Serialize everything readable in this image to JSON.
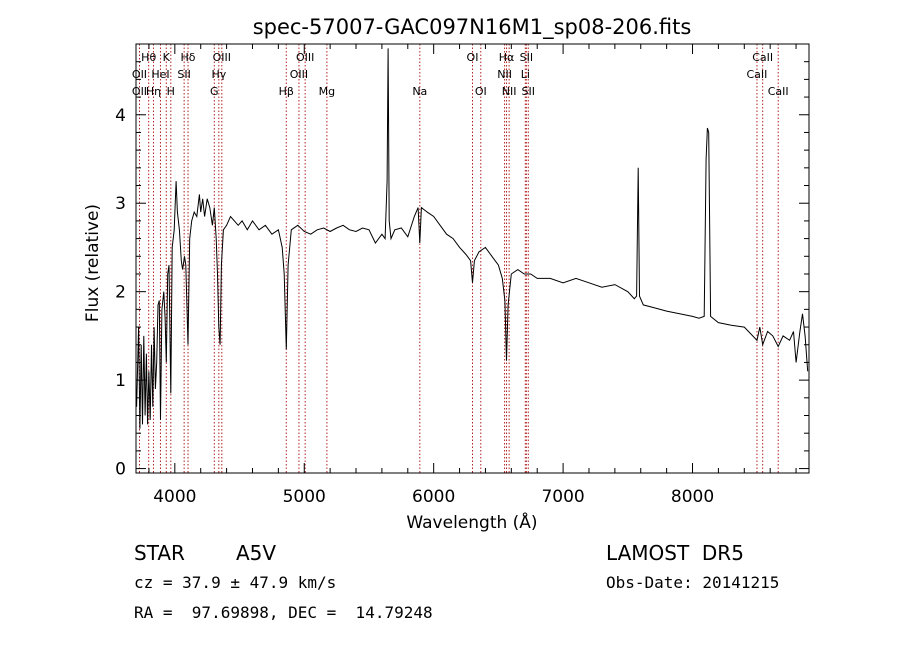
{
  "chart_data": {
    "type": "line",
    "title": "spec-57007-GAC097N16M1_sp08-206.fits",
    "xlabel": "Wavelength (Å)",
    "ylabel": "Flux (relative)",
    "xlim": [
      3700,
      8900
    ],
    "ylim": [
      -0.05,
      4.8
    ],
    "x_ticks": [
      4000,
      5000,
      6000,
      7000,
      8000
    ],
    "y_ticks": [
      0,
      1,
      2,
      3,
      4
    ],
    "grid": false,
    "line_color": "#000000",
    "marker_color": "#b22222",
    "spectral_lines": [
      {
        "label": "Hθ",
        "wavelength": 3798,
        "row": 0
      },
      {
        "label": "K",
        "wavelength": 3934,
        "row": 0
      },
      {
        "label": "Hδ",
        "wavelength": 4102,
        "row": 0
      },
      {
        "label": "OIII",
        "wavelength": 4363,
        "row": 0
      },
      {
        "label": "OIII",
        "wavelength": 5007,
        "row": 0
      },
      {
        "label": "OI",
        "wavelength": 6300,
        "row": 0
      },
      {
        "label": "Hα",
        "wavelength": 6563,
        "row": 0
      },
      {
        "label": "SII",
        "wavelength": 6716,
        "row": 0
      },
      {
        "label": "CaII",
        "wavelength": 8542,
        "row": 0
      },
      {
        "label": "OII",
        "wavelength": 3727,
        "row": 1
      },
      {
        "label": "HeI",
        "wavelength": 3889,
        "row": 1
      },
      {
        "label": "SII",
        "wavelength": 4072,
        "row": 1
      },
      {
        "label": "Hγ",
        "wavelength": 4340,
        "row": 1
      },
      {
        "label": "OIII",
        "wavelength": 4959,
        "row": 1
      },
      {
        "label": "NII",
        "wavelength": 6548,
        "row": 1
      },
      {
        "label": "Li",
        "wavelength": 6708,
        "row": 1
      },
      {
        "label": "CaII",
        "wavelength": 8498,
        "row": 1
      },
      {
        "label": "OII",
        "wavelength": 3727,
        "row": 2
      },
      {
        "label": "Hη",
        "wavelength": 3835,
        "row": 2
      },
      {
        "label": "H",
        "wavelength": 3969,
        "row": 2
      },
      {
        "label": "G",
        "wavelength": 4305,
        "row": 2
      },
      {
        "label": "Hβ",
        "wavelength": 4861,
        "row": 2
      },
      {
        "label": "Mg",
        "wavelength": 5175,
        "row": 2
      },
      {
        "label": "Na",
        "wavelength": 5893,
        "row": 2
      },
      {
        "label": "OI",
        "wavelength": 6364,
        "row": 2
      },
      {
        "label": "NII",
        "wavelength": 6583,
        "row": 2
      },
      {
        "label": "SII",
        "wavelength": 6731,
        "row": 2
      },
      {
        "label": "CaII",
        "wavelength": 8662,
        "row": 2
      }
    ],
    "series": [
      {
        "points": [
          [
            3705,
            0.7
          ],
          [
            3720,
            1.6
          ],
          [
            3730,
            0.45
          ],
          [
            3740,
            1.4
          ],
          [
            3750,
            0.5
          ],
          [
            3760,
            1.5
          ],
          [
            3770,
            0.6
          ],
          [
            3780,
            1.3
          ],
          [
            3790,
            0.5
          ],
          [
            3800,
            1.1
          ],
          [
            3810,
            0.55
          ],
          [
            3820,
            1.4
          ],
          [
            3830,
            0.7
          ],
          [
            3840,
            1.6
          ],
          [
            3850,
            0.9
          ],
          [
            3860,
            1.2
          ],
          [
            3870,
            1.85
          ],
          [
            3880,
            1.9
          ],
          [
            3889,
            0.55
          ],
          [
            3900,
            1.8
          ],
          [
            3915,
            2.0
          ],
          [
            3925,
            1.7
          ],
          [
            3934,
            1.2
          ],
          [
            3945,
            2.2
          ],
          [
            3955,
            2.3
          ],
          [
            3969,
            0.85
          ],
          [
            3980,
            2.5
          ],
          [
            3995,
            2.7
          ],
          [
            4010,
            3.25
          ],
          [
            4020,
            2.9
          ],
          [
            4035,
            2.7
          ],
          [
            4050,
            2.35
          ],
          [
            4060,
            2.25
          ],
          [
            4075,
            2.4
          ],
          [
            4085,
            2.3
          ],
          [
            4102,
            1.4
          ],
          [
            4115,
            2.6
          ],
          [
            4130,
            2.8
          ],
          [
            4150,
            2.9
          ],
          [
            4170,
            2.85
          ],
          [
            4190,
            3.1
          ],
          [
            4200,
            2.9
          ],
          [
            4215,
            3.05
          ],
          [
            4230,
            2.85
          ],
          [
            4250,
            3.05
          ],
          [
            4270,
            2.95
          ],
          [
            4290,
            2.75
          ],
          [
            4305,
            2.95
          ],
          [
            4320,
            2.6
          ],
          [
            4330,
            2.2
          ],
          [
            4340,
            1.6
          ],
          [
            4350,
            1.4
          ],
          [
            4360,
            2.3
          ],
          [
            4375,
            2.7
          ],
          [
            4400,
            2.75
          ],
          [
            4430,
            2.85
          ],
          [
            4460,
            2.8
          ],
          [
            4490,
            2.75
          ],
          [
            4520,
            2.8
          ],
          [
            4560,
            2.7
          ],
          [
            4600,
            2.8
          ],
          [
            4650,
            2.7
          ],
          [
            4700,
            2.75
          ],
          [
            4750,
            2.65
          ],
          [
            4800,
            2.7
          ],
          [
            4830,
            2.5
          ],
          [
            4845,
            2.2
          ],
          [
            4861,
            1.35
          ],
          [
            4875,
            2.3
          ],
          [
            4900,
            2.7
          ],
          [
            4950,
            2.75
          ],
          [
            5000,
            2.68
          ],
          [
            5050,
            2.65
          ],
          [
            5100,
            2.7
          ],
          [
            5150,
            2.72
          ],
          [
            5200,
            2.68
          ],
          [
            5250,
            2.72
          ],
          [
            5300,
            2.75
          ],
          [
            5350,
            2.7
          ],
          [
            5400,
            2.68
          ],
          [
            5450,
            2.72
          ],
          [
            5500,
            2.7
          ],
          [
            5550,
            2.55
          ],
          [
            5600,
            2.65
          ],
          [
            5625,
            2.6
          ],
          [
            5640,
            3.25
          ],
          [
            5648,
            4.75
          ],
          [
            5656,
            2.8
          ],
          [
            5670,
            2.6
          ],
          [
            5700,
            2.7
          ],
          [
            5750,
            2.72
          ],
          [
            5800,
            2.62
          ],
          [
            5850,
            2.85
          ],
          [
            5880,
            2.95
          ],
          [
            5893,
            2.55
          ],
          [
            5905,
            2.95
          ],
          [
            5950,
            2.9
          ],
          [
            6000,
            2.85
          ],
          [
            6050,
            2.75
          ],
          [
            6100,
            2.65
          ],
          [
            6150,
            2.6
          ],
          [
            6200,
            2.5
          ],
          [
            6250,
            2.42
          ],
          [
            6285,
            2.35
          ],
          [
            6300,
            2.1
          ],
          [
            6315,
            2.35
          ],
          [
            6350,
            2.45
          ],
          [
            6400,
            2.5
          ],
          [
            6450,
            2.4
          ],
          [
            6500,
            2.3
          ],
          [
            6530,
            2.15
          ],
          [
            6550,
            1.9
          ],
          [
            6563,
            1.22
          ],
          [
            6575,
            1.85
          ],
          [
            6600,
            2.2
          ],
          [
            6650,
            2.25
          ],
          [
            6700,
            2.2
          ],
          [
            6750,
            2.2
          ],
          [
            6800,
            2.15
          ],
          [
            6900,
            2.15
          ],
          [
            7000,
            2.1
          ],
          [
            7100,
            2.15
          ],
          [
            7200,
            2.1
          ],
          [
            7300,
            2.05
          ],
          [
            7400,
            2.08
          ],
          [
            7500,
            2.0
          ],
          [
            7550,
            1.92
          ],
          [
            7568,
            1.95
          ],
          [
            7580,
            3.4
          ],
          [
            7590,
            1.95
          ],
          [
            7620,
            1.85
          ],
          [
            7700,
            1.82
          ],
          [
            7800,
            1.78
          ],
          [
            7900,
            1.75
          ],
          [
            8000,
            1.72
          ],
          [
            8050,
            1.7
          ],
          [
            8090,
            1.72
          ],
          [
            8105,
            3.5
          ],
          [
            8115,
            3.85
          ],
          [
            8125,
            3.8
          ],
          [
            8140,
            1.72
          ],
          [
            8200,
            1.65
          ],
          [
            8300,
            1.62
          ],
          [
            8400,
            1.6
          ],
          [
            8498,
            1.45
          ],
          [
            8520,
            1.6
          ],
          [
            8542,
            1.4
          ],
          [
            8580,
            1.55
          ],
          [
            8620,
            1.5
          ],
          [
            8662,
            1.38
          ],
          [
            8700,
            1.5
          ],
          [
            8750,
            1.45
          ],
          [
            8780,
            1.55
          ],
          [
            8800,
            1.2
          ],
          [
            8830,
            1.55
          ],
          [
            8850,
            1.75
          ],
          [
            8870,
            1.5
          ],
          [
            8890,
            1.1
          ]
        ]
      }
    ]
  },
  "info": {
    "object_class": "STAR",
    "subclass": "A5V",
    "survey": "LAMOST  DR5",
    "redshift": "cz = 37.9 ± 47.9 km/s",
    "obs_date": "Obs-Date: 20141215",
    "coords": "RA =  97.69898, DEC =  14.79248"
  }
}
